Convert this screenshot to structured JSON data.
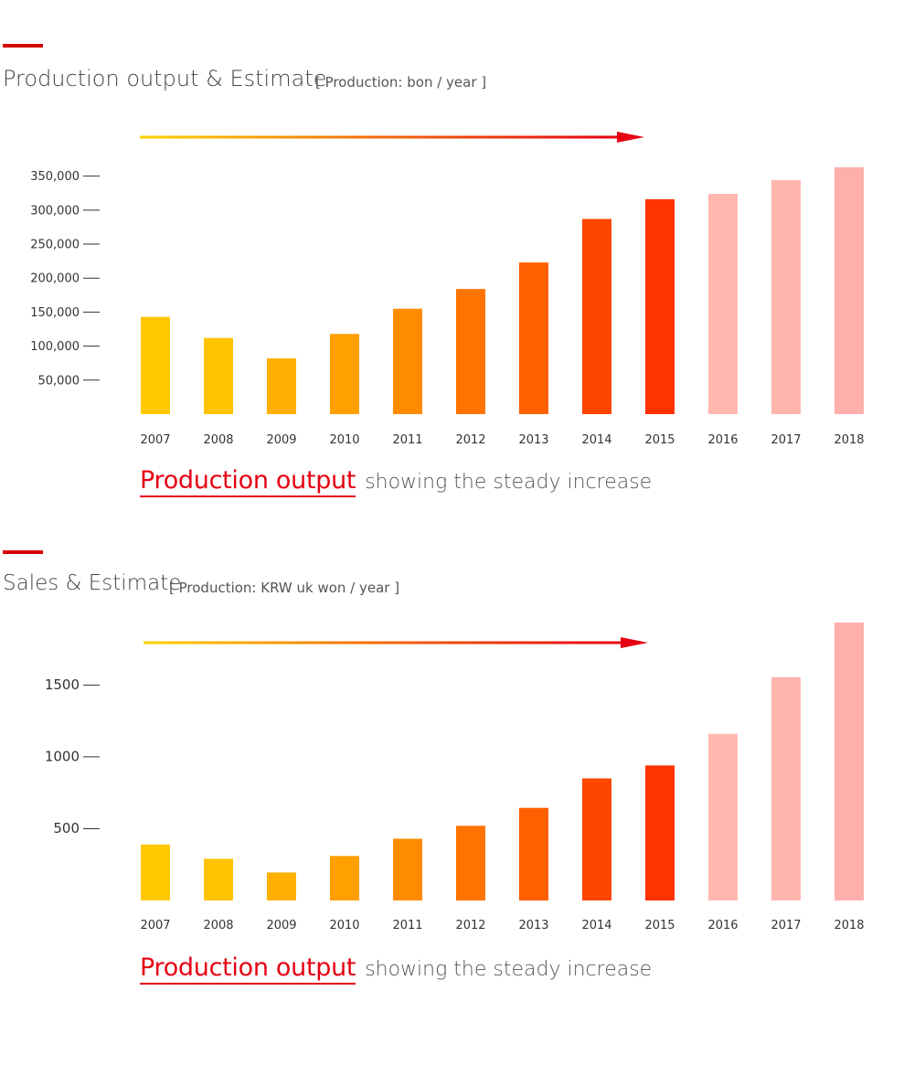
{
  "colors": {
    "accent": "#d60000",
    "arrow_start": "#ffd200",
    "arrow_end": "#e60012",
    "estimate": "#ffb3ae",
    "bar_palette": [
      "#ffc800",
      "#ffc300",
      "#ffb000",
      "#ffa000",
      "#ff8c00",
      "#ff7400",
      "#ff6000",
      "#ff4600",
      "#ff3300",
      "#ffb8b0",
      "#ffb4ad",
      "#ffafab"
    ]
  },
  "sections": [
    {
      "title": "Production output & Estimate",
      "unit": "[ Production:  bon / year ]",
      "caption_highlight": "Production output",
      "caption_rest": "showing the steady increase"
    },
    {
      "title": "Sales & Estimate",
      "unit": "[ Production: KRW uk won / year ]",
      "caption_highlight": "Production output",
      "caption_rest": "showing the steady increase"
    }
  ],
  "chart_data": [
    {
      "type": "bar",
      "title": "Production output & Estimate",
      "ylabel": "[ Production:  bon / year ]",
      "categories": [
        "2007",
        "2008",
        "2009",
        "2010",
        "2011",
        "2012",
        "2013",
        "2014",
        "2015",
        "2016",
        "2017",
        "2018"
      ],
      "values": [
        143000,
        112000,
        82000,
        118000,
        155000,
        184000,
        223000,
        287000,
        316000,
        324000,
        344000,
        363000
      ],
      "estimate_from": "2016",
      "y_ticks": [
        50000,
        100000,
        150000,
        200000,
        250000,
        300000,
        350000
      ],
      "y_tick_labels": [
        "50,000",
        "100,000",
        "150,000",
        "200,000",
        "250,000",
        "300,000",
        "350,000"
      ],
      "ylim": [
        0,
        363000
      ],
      "grid": false,
      "legend": "none"
    },
    {
      "type": "bar",
      "title": "Sales & Estimate",
      "ylabel": "[ Production: KRW uk won / year ]",
      "categories": [
        "2007",
        "2008",
        "2009",
        "2010",
        "2011",
        "2012",
        "2013",
        "2014",
        "2015",
        "2016",
        "2017",
        "2018"
      ],
      "values": [
        390,
        290,
        195,
        310,
        430,
        520,
        645,
        850,
        940,
        1160,
        1555,
        1935
      ],
      "estimate_from": "2016",
      "y_ticks": [
        500,
        1000,
        1500
      ],
      "y_tick_labels": [
        "500",
        "1000",
        "1500"
      ],
      "ylim": [
        0,
        1935
      ],
      "grid": false,
      "legend": "none"
    }
  ]
}
